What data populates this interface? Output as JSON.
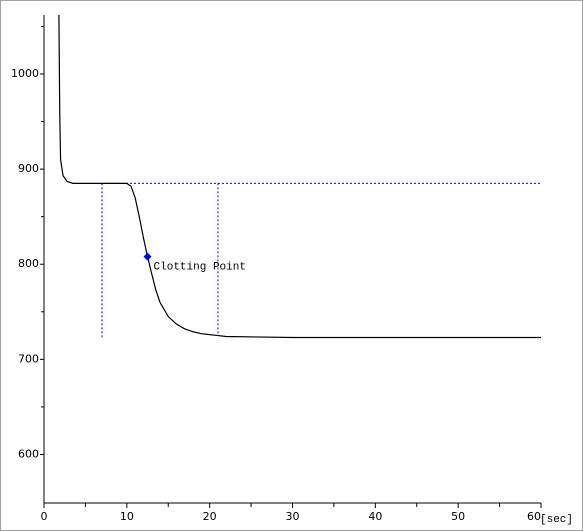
{
  "chart_data": {
    "type": "line",
    "x": [
      1.8,
      1.9,
      2.0,
      2.3,
      2.8,
      3.5,
      5,
      7,
      9,
      10,
      10.5,
      11,
      11.5,
      12,
      12.5,
      13,
      13.5,
      14,
      15,
      16,
      17,
      18,
      19,
      20,
      21,
      22,
      30,
      40,
      50,
      60
    ],
    "series": [
      {
        "color": "#000000",
        "values": [
          1062,
          960,
          910,
          893,
          887,
          885,
          885,
          885,
          885,
          885,
          882,
          870,
          850,
          828,
          808,
          790,
          773,
          760,
          745,
          737,
          732,
          729,
          727,
          726,
          725,
          724,
          723,
          723,
          723,
          723
        ]
      }
    ],
    "xlim": [
      0,
      60
    ],
    "ylim": [
      549,
      1062
    ],
    "xticks": [
      0,
      10,
      20,
      30,
      40,
      50,
      60
    ],
    "xminorticks": [
      5,
      15,
      25,
      35,
      45,
      55
    ],
    "yticks": [
      600,
      700,
      800,
      900,
      1000
    ],
    "yminorticks": [
      650,
      750,
      850,
      950,
      1050
    ],
    "x_unit": "[sec]",
    "guides": [
      {
        "color": "#0000ff",
        "x": [
          7,
          60
        ],
        "y": [
          885,
          885
        ]
      },
      {
        "color": "#0000ff",
        "x": [
          7,
          7
        ],
        "y": [
          885,
          722
        ]
      },
      {
        "color": "#0000ff",
        "x": [
          21,
          21
        ],
        "y": [
          885,
          725
        ]
      }
    ],
    "annotations": [
      {
        "text": "Clotting Point",
        "x": 12.5,
        "y": 808,
        "color": "#0000ff"
      }
    ]
  }
}
